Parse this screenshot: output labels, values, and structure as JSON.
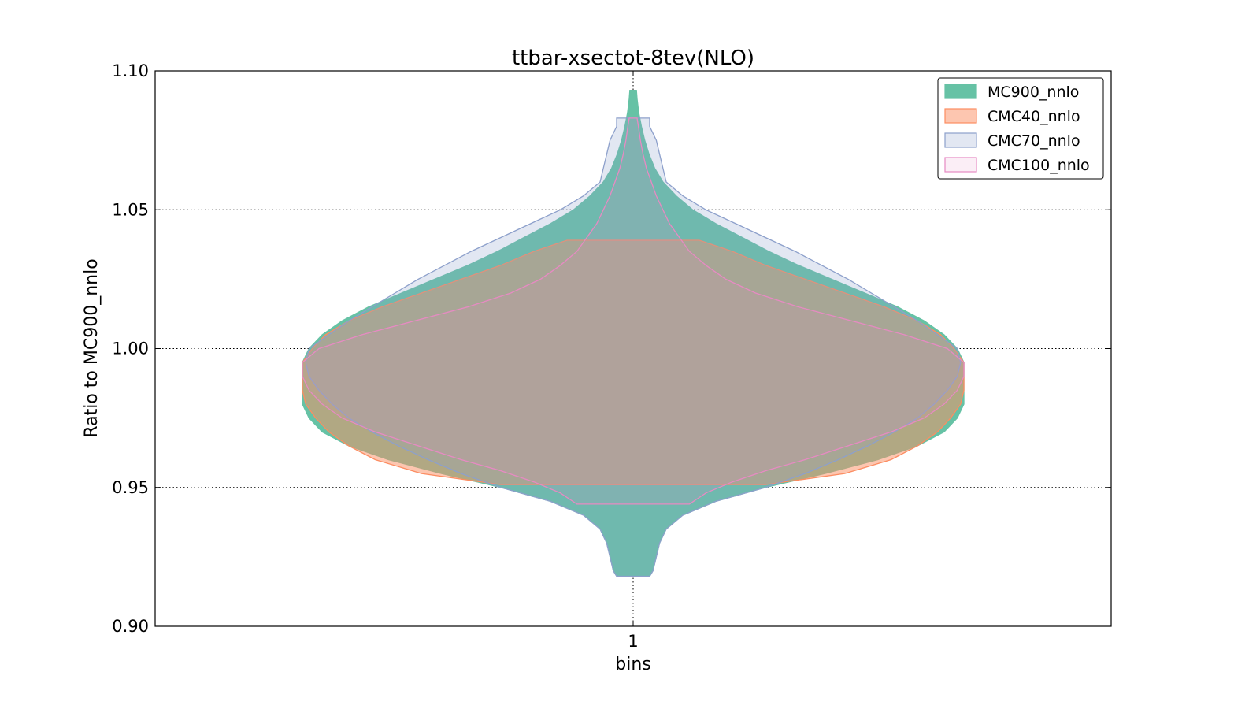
{
  "chart_data": {
    "type": "violin",
    "title": "ttbar-xsectot-8tev(NLO)",
    "xlabel": "bins",
    "ylabel": "Ratio to MC900_nnlo",
    "categories": [
      "1"
    ],
    "ylim": [
      0.9,
      1.1
    ],
    "yticks": [
      "0.90",
      "0.95",
      "1.00",
      "1.05",
      "1.10"
    ],
    "grid": true,
    "legend_position": "top-right",
    "series": [
      {
        "name": "MC900_nnlo",
        "color": "#66c2a5",
        "edge": "#66c2a5",
        "alpha": 1.0,
        "range": [
          0.918,
          1.093
        ],
        "profile": [
          [
            0.918,
            0.05
          ],
          [
            0.92,
            0.06
          ],
          [
            0.925,
            0.07
          ],
          [
            0.93,
            0.08
          ],
          [
            0.935,
            0.1
          ],
          [
            0.94,
            0.15
          ],
          [
            0.945,
            0.25
          ],
          [
            0.95,
            0.4
          ],
          [
            0.955,
            0.58
          ],
          [
            0.96,
            0.74
          ],
          [
            0.965,
            0.86
          ],
          [
            0.97,
            0.94
          ],
          [
            0.975,
            0.98
          ],
          [
            0.98,
            1.0
          ],
          [
            0.985,
            1.0
          ],
          [
            0.99,
            1.0
          ],
          [
            0.995,
            1.0
          ],
          [
            1.0,
            0.98
          ],
          [
            1.005,
            0.94
          ],
          [
            1.01,
            0.88
          ],
          [
            1.015,
            0.8
          ],
          [
            1.02,
            0.7
          ],
          [
            1.025,
            0.6
          ],
          [
            1.03,
            0.5
          ],
          [
            1.035,
            0.41
          ],
          [
            1.04,
            0.33
          ],
          [
            1.045,
            0.25
          ],
          [
            1.05,
            0.18
          ],
          [
            1.055,
            0.13
          ],
          [
            1.06,
            0.09
          ],
          [
            1.065,
            0.065
          ],
          [
            1.07,
            0.048
          ],
          [
            1.075,
            0.035
          ],
          [
            1.08,
            0.025
          ],
          [
            1.085,
            0.017
          ],
          [
            1.09,
            0.012
          ],
          [
            1.093,
            0.01
          ]
        ]
      },
      {
        "name": "CMC40_nnlo",
        "color": "#fc8d62",
        "edge": "#fc8d62",
        "alpha": 0.5,
        "range": [
          0.951,
          1.039
        ],
        "profile": [
          [
            0.951,
            0.4
          ],
          [
            0.955,
            0.64
          ],
          [
            0.96,
            0.78
          ],
          [
            0.965,
            0.86
          ],
          [
            0.97,
            0.92
          ],
          [
            0.975,
            0.96
          ],
          [
            0.98,
            0.99
          ],
          [
            0.985,
            1.0
          ],
          [
            0.99,
            1.0
          ],
          [
            0.995,
            1.0
          ],
          [
            1.0,
            0.97
          ],
          [
            1.005,
            0.93
          ],
          [
            1.01,
            0.86
          ],
          [
            1.015,
            0.76
          ],
          [
            1.02,
            0.64
          ],
          [
            1.025,
            0.52
          ],
          [
            1.03,
            0.4
          ],
          [
            1.035,
            0.3
          ],
          [
            1.039,
            0.2
          ]
        ]
      },
      {
        "name": "CMC70_nnlo",
        "color": "#8da0cb",
        "edge": "#8da0cb",
        "alpha": 0.25,
        "range": [
          0.918,
          1.083
        ],
        "profile": [
          [
            0.918,
            0.05
          ],
          [
            0.92,
            0.06
          ],
          [
            0.925,
            0.07
          ],
          [
            0.93,
            0.08
          ],
          [
            0.935,
            0.1
          ],
          [
            0.94,
            0.15
          ],
          [
            0.945,
            0.25
          ],
          [
            0.95,
            0.4
          ],
          [
            0.955,
            0.52
          ],
          [
            0.96,
            0.62
          ],
          [
            0.965,
            0.71
          ],
          [
            0.97,
            0.79
          ],
          [
            0.975,
            0.86
          ],
          [
            0.98,
            0.91
          ],
          [
            0.985,
            0.95
          ],
          [
            0.99,
            0.98
          ],
          [
            0.995,
            0.99
          ],
          [
            1.0,
            0.98
          ],
          [
            1.005,
            0.92
          ],
          [
            1.01,
            0.86
          ],
          [
            1.015,
            0.79
          ],
          [
            1.02,
            0.72
          ],
          [
            1.025,
            0.65
          ],
          [
            1.03,
            0.57
          ],
          [
            1.035,
            0.49
          ],
          [
            1.04,
            0.4
          ],
          [
            1.045,
            0.31
          ],
          [
            1.05,
            0.22
          ],
          [
            1.055,
            0.15
          ],
          [
            1.06,
            0.1
          ],
          [
            1.065,
            0.09
          ],
          [
            1.07,
            0.08
          ],
          [
            1.075,
            0.07
          ],
          [
            1.08,
            0.05
          ],
          [
            1.083,
            0.05
          ]
        ]
      },
      {
        "name": "CMC100_nnlo",
        "color": "#e78ac3",
        "edge": "#e78ac3",
        "alpha": 0.15,
        "range": [
          0.944,
          1.083
        ],
        "profile": [
          [
            0.944,
            0.17
          ],
          [
            0.948,
            0.22
          ],
          [
            0.952,
            0.3
          ],
          [
            0.956,
            0.4
          ],
          [
            0.96,
            0.52
          ],
          [
            0.965,
            0.65
          ],
          [
            0.97,
            0.78
          ],
          [
            0.975,
            0.88
          ],
          [
            0.98,
            0.94
          ],
          [
            0.985,
            0.98
          ],
          [
            0.99,
            1.0
          ],
          [
            0.995,
            1.0
          ],
          [
            1.0,
            0.95
          ],
          [
            1.005,
            0.82
          ],
          [
            1.01,
            0.66
          ],
          [
            1.015,
            0.5
          ],
          [
            1.02,
            0.37
          ],
          [
            1.025,
            0.28
          ],
          [
            1.03,
            0.22
          ],
          [
            1.035,
            0.17
          ],
          [
            1.04,
            0.14
          ],
          [
            1.045,
            0.11
          ],
          [
            1.05,
            0.09
          ],
          [
            1.055,
            0.07
          ],
          [
            1.06,
            0.055
          ],
          [
            1.065,
            0.04
          ],
          [
            1.07,
            0.03
          ],
          [
            1.075,
            0.022
          ],
          [
            1.08,
            0.016
          ],
          [
            1.083,
            0.012
          ]
        ]
      }
    ]
  }
}
